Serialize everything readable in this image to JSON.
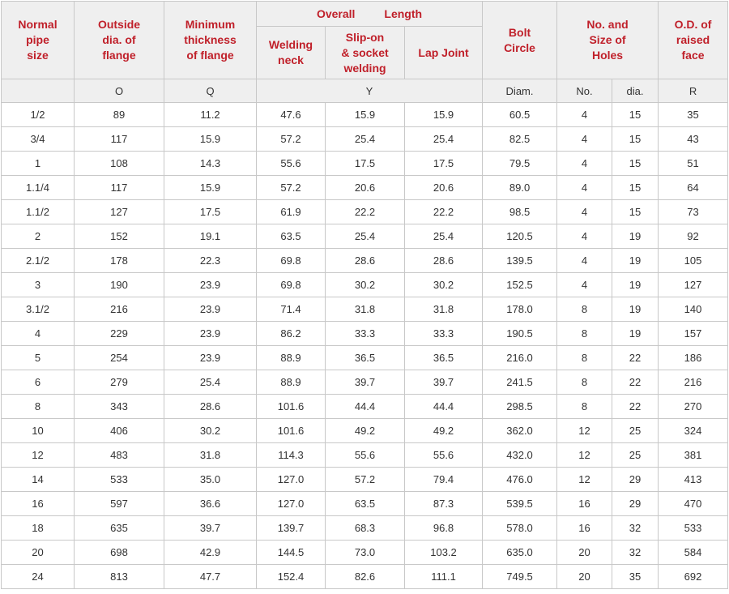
{
  "header": {
    "normal_pipe_size": [
      "Normal",
      "pipe",
      "size"
    ],
    "outside_dia": [
      "Outside",
      "dia. of",
      "flange"
    ],
    "min_thickness": [
      "Minimum",
      "thickness",
      "of flange"
    ],
    "overall_word": "Overall",
    "length_word": "Length",
    "welding_neck": [
      "Welding",
      "neck"
    ],
    "slip_on": [
      "Slip-on",
      "& socket",
      "welding"
    ],
    "lap_joint": "Lap Joint",
    "bolt_circle": [
      "Bolt",
      "Circle"
    ],
    "holes": [
      "No. and",
      "Size of",
      "Holes"
    ],
    "raised_face": [
      "O.D. of",
      "raised",
      "face"
    ]
  },
  "units": {
    "size": "",
    "o": "O",
    "q": "Q",
    "y": "Y",
    "diam": "Diam.",
    "no": "No.",
    "dia": "dia.",
    "r": "R"
  },
  "rows": [
    [
      "1/2",
      "89",
      "11.2",
      "47.6",
      "15.9",
      "15.9",
      "60.5",
      "4",
      "15",
      "35"
    ],
    [
      "3/4",
      "117",
      "15.9",
      "57.2",
      "25.4",
      "25.4",
      "82.5",
      "4",
      "15",
      "43"
    ],
    [
      "1",
      "108",
      "14.3",
      "55.6",
      "17.5",
      "17.5",
      "79.5",
      "4",
      "15",
      "51"
    ],
    [
      "1.1/4",
      "117",
      "15.9",
      "57.2",
      "20.6",
      "20.6",
      "89.0",
      "4",
      "15",
      "64"
    ],
    [
      "1.1/2",
      "127",
      "17.5",
      "61.9",
      "22.2",
      "22.2",
      "98.5",
      "4",
      "15",
      "73"
    ],
    [
      "2",
      "152",
      "19.1",
      "63.5",
      "25.4",
      "25.4",
      "120.5",
      "4",
      "19",
      "92"
    ],
    [
      "2.1/2",
      "178",
      "22.3",
      "69.8",
      "28.6",
      "28.6",
      "139.5",
      "4",
      "19",
      "105"
    ],
    [
      "3",
      "190",
      "23.9",
      "69.8",
      "30.2",
      "30.2",
      "152.5",
      "4",
      "19",
      "127"
    ],
    [
      "3.1/2",
      "216",
      "23.9",
      "71.4",
      "31.8",
      "31.8",
      "178.0",
      "8",
      "19",
      "140"
    ],
    [
      "4",
      "229",
      "23.9",
      "86.2",
      "33.3",
      "33.3",
      "190.5",
      "8",
      "19",
      "157"
    ],
    [
      "5",
      "254",
      "23.9",
      "88.9",
      "36.5",
      "36.5",
      "216.0",
      "8",
      "22",
      "186"
    ],
    [
      "6",
      "279",
      "25.4",
      "88.9",
      "39.7",
      "39.7",
      "241.5",
      "8",
      "22",
      "216"
    ],
    [
      "8",
      "343",
      "28.6",
      "101.6",
      "44.4",
      "44.4",
      "298.5",
      "8",
      "22",
      "270"
    ],
    [
      "10",
      "406",
      "30.2",
      "101.6",
      "49.2",
      "49.2",
      "362.0",
      "12",
      "25",
      "324"
    ],
    [
      "12",
      "483",
      "31.8",
      "114.3",
      "55.6",
      "55.6",
      "432.0",
      "12",
      "25",
      "381"
    ],
    [
      "14",
      "533",
      "35.0",
      "127.0",
      "57.2",
      "79.4",
      "476.0",
      "12",
      "29",
      "413"
    ],
    [
      "16",
      "597",
      "36.6",
      "127.0",
      "63.5",
      "87.3",
      "539.5",
      "16",
      "29",
      "470"
    ],
    [
      "18",
      "635",
      "39.7",
      "139.7",
      "68.3",
      "96.8",
      "578.0",
      "16",
      "32",
      "533"
    ],
    [
      "20",
      "698",
      "42.9",
      "144.5",
      "73.0",
      "103.2",
      "635.0",
      "20",
      "32",
      "584"
    ],
    [
      "24",
      "813",
      "47.7",
      "152.4",
      "82.6",
      "111.1",
      "749.5",
      "20",
      "35",
      "692"
    ]
  ],
  "colors": {
    "header_text": "#c0202a",
    "header_bg": "#efefef",
    "border": "#c8c8c8",
    "body_text": "#333333"
  }
}
